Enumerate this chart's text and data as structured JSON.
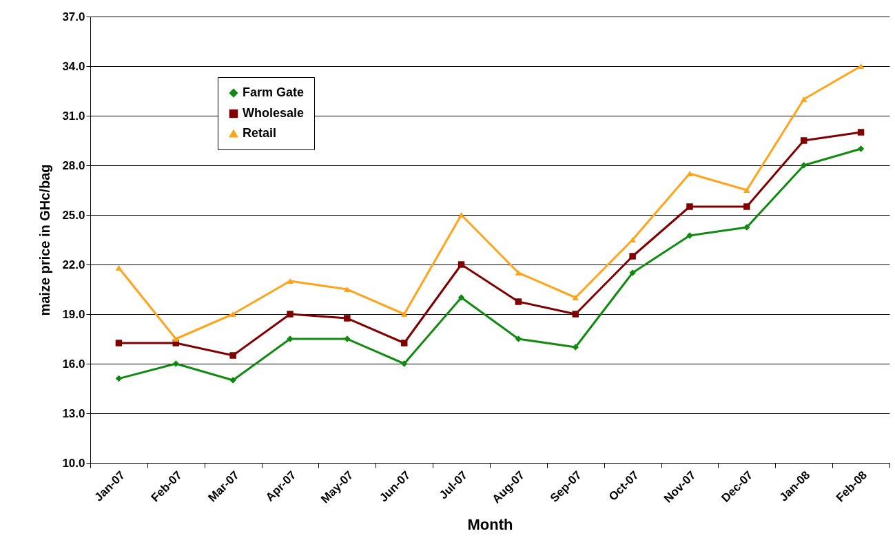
{
  "chart_data": {
    "type": "line",
    "xlabel": "Month",
    "ylabel": "maize price in GHc/bag",
    "categories": [
      "Jan-07",
      "Feb-07",
      "Mar-07",
      "Apr-07",
      "May-07",
      "Jun-07",
      "Jul-07",
      "Aug-07",
      "Sep-07",
      "Oct-07",
      "Nov-07",
      "Dec-07",
      "Jan-08",
      "Feb-08"
    ],
    "series": [
      {
        "name": "Farm Gate",
        "color": "#108a10",
        "marker": "diamond",
        "values": [
          15.1,
          16.0,
          15.0,
          17.5,
          17.5,
          16.0,
          20.0,
          17.5,
          17.0,
          21.5,
          23.75,
          24.25,
          28.0,
          29.0
        ]
      },
      {
        "name": "Wholesale",
        "color": "#800000",
        "marker": "square",
        "values": [
          17.25,
          17.25,
          16.5,
          19.0,
          18.75,
          17.25,
          22.0,
          19.75,
          19.0,
          22.5,
          25.5,
          25.5,
          29.5,
          30.0
        ]
      },
      {
        "name": "Retail",
        "color": "#ffa31a",
        "marker": "triangle",
        "values": [
          21.8,
          17.5,
          19.0,
          21.0,
          20.5,
          19.0,
          25.0,
          21.5,
          20.0,
          23.5,
          27.5,
          26.5,
          32.0,
          34.0
        ]
      }
    ],
    "ylim": [
      10,
      37
    ],
    "yticks": [
      {
        "value": 10,
        "label": "10.0"
      },
      {
        "value": 13,
        "label": "13.0"
      },
      {
        "value": 16,
        "label": "16.0"
      },
      {
        "value": 19,
        "label": "19.0"
      },
      {
        "value": 22,
        "label": "22.0"
      },
      {
        "value": 25,
        "label": "25.0"
      },
      {
        "value": 28,
        "label": "28.0"
      },
      {
        "value": 31,
        "label": "31.0"
      },
      {
        "value": 34,
        "label": "34.0"
      },
      {
        "value": 37,
        "label": "37.0"
      }
    ],
    "grid": "y",
    "legend": "top left"
  }
}
